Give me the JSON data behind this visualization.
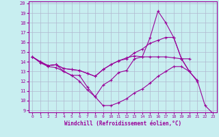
{
  "title": "",
  "xlabel": "Windchill (Refroidissement éolien,°C)",
  "ylabel": "",
  "bg_color": "#c8eef0",
  "line_color": "#990099",
  "grid_color": "#b0b8d0",
  "xlim": [
    -0.5,
    23.5
  ],
  "ylim": [
    8.8,
    20.2
  ],
  "xticks": [
    0,
    1,
    2,
    3,
    4,
    5,
    6,
    7,
    8,
    9,
    10,
    11,
    12,
    13,
    14,
    15,
    16,
    17,
    18,
    19,
    20,
    21,
    22,
    23
  ],
  "yticks": [
    9,
    10,
    11,
    12,
    13,
    14,
    15,
    16,
    17,
    18,
    19,
    20
  ],
  "series": [
    [
      14.5,
      14.0,
      13.6,
      13.7,
      13.0,
      12.6,
      12.6,
      11.4,
      10.4,
      11.6,
      12.1,
      12.9,
      13.1,
      14.3,
      14.5,
      16.5,
      19.2,
      18.0,
      16.5,
      14.3,
      13.0,
      12.0,
      null,
      null
    ],
    [
      14.5,
      14.0,
      13.6,
      13.7,
      13.3,
      13.2,
      13.1,
      12.8,
      12.5,
      13.2,
      13.7,
      14.1,
      14.3,
      14.9,
      15.3,
      15.9,
      16.2,
      16.5,
      16.5,
      14.3,
      13.0,
      null,
      null,
      null
    ],
    [
      14.5,
      14.0,
      13.6,
      13.7,
      13.3,
      13.2,
      13.1,
      12.8,
      12.5,
      13.2,
      13.7,
      14.1,
      14.4,
      14.6,
      14.5,
      14.5,
      14.5,
      14.5,
      14.4,
      14.3,
      14.3,
      null,
      null,
      null
    ],
    [
      14.5,
      13.9,
      13.5,
      13.4,
      13.0,
      12.6,
      12.0,
      11.1,
      10.4,
      9.5,
      9.5,
      9.8,
      10.2,
      10.8,
      11.2,
      11.8,
      12.5,
      13.0,
      13.5,
      13.5,
      13.0,
      12.1,
      9.5,
      8.7
    ]
  ]
}
